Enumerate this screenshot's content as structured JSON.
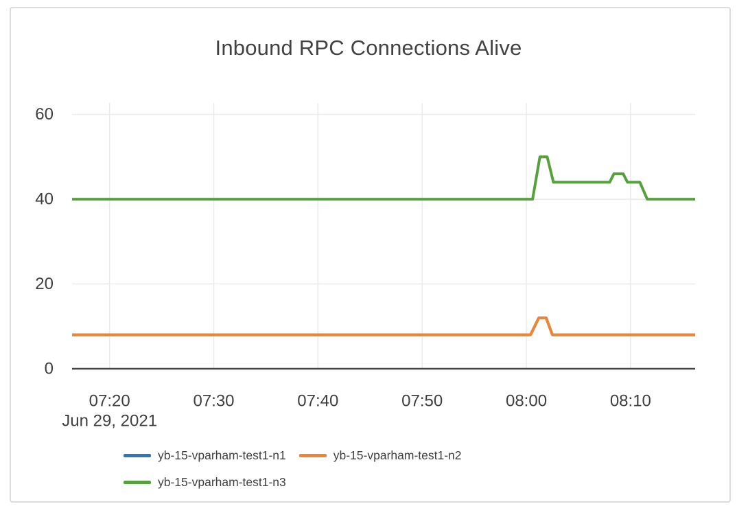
{
  "title": "Inbound RPC Connections Alive",
  "colors": {
    "grid": "#eaeaea",
    "axis": "#444444",
    "text": "#3f3f3f",
    "card_border": "#dcdcdc",
    "background": "#ffffff"
  },
  "chart_data": {
    "type": "line",
    "title": "Inbound RPC Connections Alive",
    "grid": true,
    "legend_position": "bottom",
    "points_format": "[minutes since 07:00, connections alive]",
    "x_axis": {
      "date_label": "Jun 29, 2021",
      "range_minutes": [
        16.4,
        76.2
      ],
      "ticks": [
        {
          "t": 20,
          "label": "07:20"
        },
        {
          "t": 30,
          "label": "07:30"
        },
        {
          "t": 40,
          "label": "07:40"
        },
        {
          "t": 50,
          "label": "07:50"
        },
        {
          "t": 60,
          "label": "08:00"
        },
        {
          "t": 70,
          "label": "08:10"
        }
      ]
    },
    "y_axis": {
      "range": [
        0,
        62.7
      ],
      "ticks": [
        {
          "v": 0,
          "label": "0"
        },
        {
          "v": 20,
          "label": "20"
        },
        {
          "v": 40,
          "label": "40"
        },
        {
          "v": 60,
          "label": "60"
        }
      ]
    },
    "series": [
      {
        "name": "yb-15-vparham-test1-n1",
        "color": "#3274b4",
        "note": "coincides with series n2 and is hidden beneath it",
        "points": [
          [
            16.4,
            8
          ],
          [
            60.4,
            8
          ],
          [
            61.2,
            12
          ],
          [
            61.9,
            12
          ],
          [
            62.5,
            8
          ],
          [
            76.2,
            8
          ]
        ]
      },
      {
        "name": "yb-15-vparham-test1-n2",
        "color": "#ee8435",
        "points": [
          [
            16.4,
            8
          ],
          [
            60.4,
            8
          ],
          [
            61.2,
            12
          ],
          [
            61.9,
            12
          ],
          [
            62.5,
            8
          ],
          [
            76.2,
            8
          ]
        ]
      },
      {
        "name": "yb-15-vparham-test1-n3",
        "color": "#57a03e",
        "points": [
          [
            16.4,
            40
          ],
          [
            60.6,
            40
          ],
          [
            61.3,
            50
          ],
          [
            62.0,
            50
          ],
          [
            62.6,
            44
          ],
          [
            68.0,
            44
          ],
          [
            68.4,
            46
          ],
          [
            69.3,
            46
          ],
          [
            69.7,
            44
          ],
          [
            70.9,
            44
          ],
          [
            71.6,
            40
          ],
          [
            76.2,
            40
          ]
        ]
      }
    ]
  }
}
